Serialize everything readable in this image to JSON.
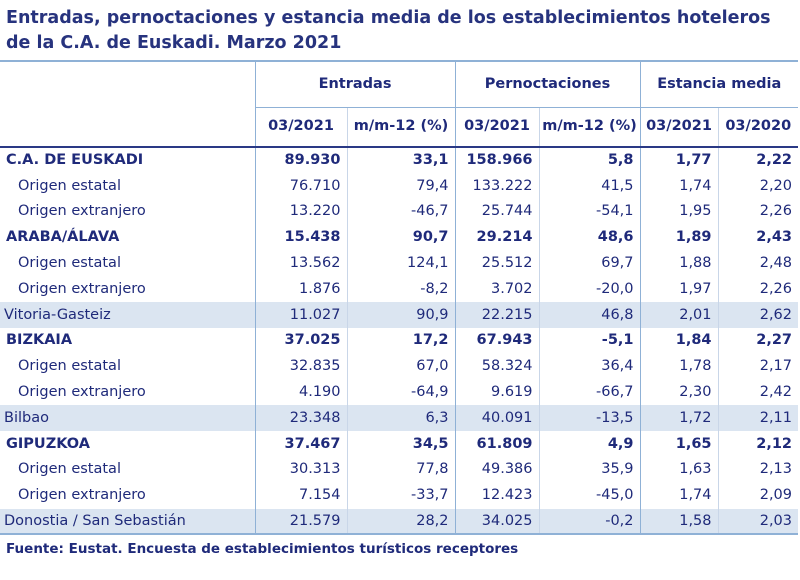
{
  "title": "Entradas, pernoctaciones y estancia media de los establecimientos hoteleros de la C.A. de Euskadi.  Marzo 2021",
  "groups": {
    "entradas": "Entradas",
    "pernoctaciones": "Pernoctaciones",
    "estancia": "Estancia media"
  },
  "subheaders": [
    "03/2021",
    "m/m-12 (%)",
    "03/2021",
    "m/m-12 (%)",
    "03/2021",
    "03/2020"
  ],
  "rows": [
    {
      "label": "C.A. DE EUSKADI",
      "values": [
        "89.930",
        "33,1",
        "158.966",
        "5,8",
        "1,77",
        "2,22"
      ]
    },
    {
      "label": "Origen estatal",
      "values": [
        "76.710",
        "79,4",
        "133.222",
        "41,5",
        "1,74",
        "2,20"
      ]
    },
    {
      "label": "Origen extranjero",
      "values": [
        "13.220",
        "-46,7",
        "25.744",
        "-54,1",
        "1,95",
        "2,26"
      ]
    },
    {
      "label": "ARABA/ÁLAVA",
      "values": [
        "15.438",
        "90,7",
        "29.214",
        "48,6",
        "1,89",
        "2,43"
      ]
    },
    {
      "label": "Origen estatal",
      "values": [
        "13.562",
        "124,1",
        "25.512",
        "69,7",
        "1,88",
        "2,48"
      ]
    },
    {
      "label": "Origen extranjero",
      "values": [
        "1.876",
        "-8,2",
        "3.702",
        "-20,0",
        "1,97",
        "2,26"
      ]
    },
    {
      "label": "Vitoria-Gasteiz",
      "values": [
        "11.027",
        "90,9",
        "22.215",
        "46,8",
        "2,01",
        "2,62"
      ]
    },
    {
      "label": "BIZKAIA",
      "values": [
        "37.025",
        "17,2",
        "67.943",
        "-5,1",
        "1,84",
        "2,27"
      ]
    },
    {
      "label": "Origen estatal",
      "values": [
        "32.835",
        "67,0",
        "58.324",
        "36,4",
        "1,78",
        "2,17"
      ]
    },
    {
      "label": "Origen extranjero",
      "values": [
        "4.190",
        "-64,9",
        "9.619",
        "-66,7",
        "2,30",
        "2,42"
      ]
    },
    {
      "label": "Bilbao",
      "values": [
        "23.348",
        "6,3",
        "40.091",
        "-13,5",
        "1,72",
        "2,11"
      ]
    },
    {
      "label": "GIPUZKOA",
      "values": [
        "37.467",
        "34,5",
        "61.809",
        "4,9",
        "1,65",
        "2,12"
      ]
    },
    {
      "label": "Origen estatal",
      "values": [
        "30.313",
        "77,8",
        "49.386",
        "35,9",
        "1,63",
        "2,13"
      ]
    },
    {
      "label": "Origen extranjero",
      "values": [
        "7.154",
        "-33,7",
        "12.423",
        "-45,0",
        "1,74",
        "2,09"
      ]
    },
    {
      "label": "Donostia / San Sebastián",
      "values": [
        "21.579",
        "28,2",
        "34.025",
        "-0,2",
        "1,58",
        "2,03"
      ]
    }
  ],
  "source": "Fuente: Eustat. Encuesta de establecimientos turísticos receptores",
  "colors": {
    "text": "#1f2a7a",
    "city_row_bg": "#dbe5f1",
    "rule": "#8fb1d6",
    "header_rule": "#2a3985"
  }
}
